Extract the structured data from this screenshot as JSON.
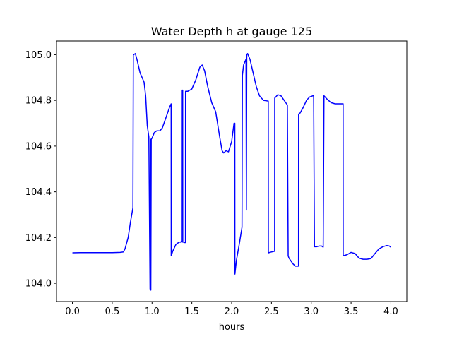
{
  "chart_data": {
    "type": "line",
    "title": "Water Depth h at gauge 125",
    "xlabel": "hours",
    "ylabel": "",
    "xlim": [
      -0.2,
      4.2
    ],
    "ylim": [
      103.92,
      105.06
    ],
    "xticks": [
      0.0,
      0.5,
      1.0,
      1.5,
      2.0,
      2.5,
      3.0,
      3.5,
      4.0
    ],
    "xtick_labels": [
      "0.0",
      "0.5",
      "1.0",
      "1.5",
      "2.0",
      "2.5",
      "3.0",
      "3.5",
      "4.0"
    ],
    "yticks": [
      104.0,
      104.2,
      104.4,
      104.6,
      104.8,
      105.0
    ],
    "ytick_labels": [
      "104.0",
      "104.2",
      "104.4",
      "104.6",
      "104.8",
      "105.0"
    ],
    "grid": false,
    "series": [
      {
        "color": "#0000ff",
        "x": [
          0.0,
          0.1,
          0.3,
          0.5,
          0.6,
          0.64,
          0.66,
          0.7,
          0.73,
          0.76,
          0.765,
          0.77,
          0.79,
          0.81,
          0.85,
          0.9,
          0.92,
          0.94,
          0.96,
          0.975,
          0.98,
          0.985,
          0.99,
          1.0,
          1.03,
          1.06,
          1.1,
          1.13,
          1.18,
          1.22,
          1.24,
          1.241,
          1.26,
          1.3,
          1.34,
          1.36,
          1.37,
          1.371,
          1.38,
          1.385,
          1.386,
          1.39,
          1.4,
          1.41,
          1.42,
          1.421,
          1.45,
          1.5,
          1.55,
          1.6,
          1.63,
          1.66,
          1.7,
          1.75,
          1.8,
          1.85,
          1.88,
          1.9,
          1.93,
          1.96,
          2.0,
          2.03,
          2.04,
          2.041,
          2.06,
          2.1,
          2.13,
          2.135,
          2.15,
          2.18,
          2.185,
          2.19,
          2.2,
          2.23,
          2.27,
          2.31,
          2.35,
          2.4,
          2.44,
          2.46,
          2.461,
          2.49,
          2.54,
          2.541,
          2.58,
          2.62,
          2.66,
          2.7,
          2.71,
          2.72,
          2.74,
          2.77,
          2.8,
          2.84,
          2.841,
          2.86,
          2.9,
          2.94,
          2.98,
          3.02,
          3.03,
          3.04,
          3.07,
          3.1,
          3.13,
          3.15,
          3.16,
          3.2,
          3.25,
          3.3,
          3.35,
          3.38,
          3.39,
          3.4,
          3.401,
          3.45,
          3.5,
          3.55,
          3.6,
          3.65,
          3.7,
          3.75,
          3.8,
          3.85,
          3.9,
          3.95,
          3.98,
          4.0
        ],
        "y": [
          104.133,
          104.134,
          104.134,
          104.134,
          104.135,
          104.137,
          104.15,
          104.2,
          104.27,
          104.33,
          105.0,
          105.0,
          105.005,
          104.98,
          104.92,
          104.88,
          104.82,
          104.69,
          104.64,
          103.975,
          104.63,
          103.97,
          104.63,
          104.635,
          104.66,
          104.667,
          104.667,
          104.68,
          104.73,
          104.77,
          104.785,
          104.12,
          104.14,
          104.17,
          104.18,
          104.18,
          104.185,
          104.845,
          104.845,
          104.845,
          104.18,
          104.18,
          104.18,
          104.178,
          104.178,
          104.84,
          104.84,
          104.85,
          104.89,
          104.945,
          104.955,
          104.93,
          104.86,
          104.79,
          104.75,
          104.64,
          104.58,
          104.57,
          104.58,
          104.575,
          104.62,
          104.7,
          104.7,
          104.04,
          104.1,
          104.18,
          104.245,
          104.91,
          104.955,
          104.98,
          104.32,
          105.0,
          105.005,
          104.98,
          104.92,
          104.86,
          104.82,
          104.8,
          104.798,
          104.797,
          104.133,
          104.136,
          104.14,
          104.81,
          104.825,
          104.82,
          104.8,
          104.78,
          104.12,
          104.11,
          104.1,
          104.085,
          104.075,
          104.075,
          104.74,
          104.745,
          104.77,
          104.8,
          104.815,
          104.82,
          104.82,
          104.16,
          104.16,
          104.163,
          104.163,
          104.158,
          104.82,
          104.805,
          104.79,
          104.785,
          104.785,
          104.785,
          104.785,
          104.785,
          104.12,
          104.125,
          104.135,
          104.13,
          104.11,
          104.105,
          104.105,
          104.108,
          104.13,
          104.15,
          104.16,
          104.165,
          104.163,
          104.158
        ]
      }
    ]
  }
}
